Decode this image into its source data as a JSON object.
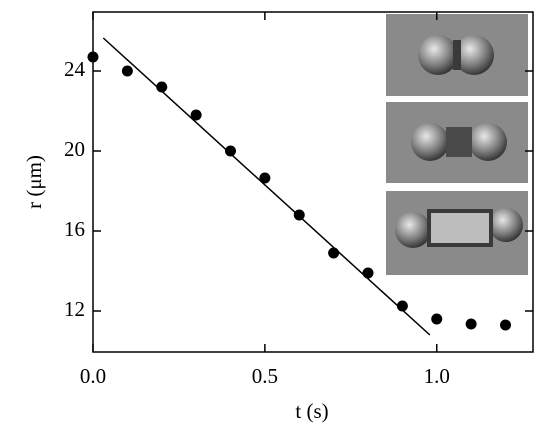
{
  "chart_data": {
    "type": "scatter",
    "x_label": "t (s)",
    "y_label": "r (μm)",
    "xlim": [
      0,
      1.28
    ],
    "ylim": [
      9.95,
      26.95
    ],
    "xticks": [
      {
        "value": 0,
        "label": "0.0"
      },
      0.5,
      {
        "value": 1,
        "label": "1.0"
      }
    ],
    "yticks": [
      12,
      16,
      20,
      24
    ],
    "series": [
      {
        "type": "scatter",
        "color": "#000000",
        "x": [
          0,
          0.1,
          0.2,
          0.3,
          0.4,
          0.5,
          0.6,
          0.7,
          0.8,
          0.9,
          1.0,
          1.1,
          1.2
        ],
        "values": [
          24.7,
          24.0,
          23.2,
          21.8,
          20.0,
          18.65,
          16.8,
          14.9,
          13.9,
          12.25,
          11.6,
          11.35,
          11.3
        ]
      },
      {
        "type": "line",
        "color": "#000000",
        "x": [
          0.03,
          0.98
        ],
        "values": [
          25.65,
          10.8
        ]
      }
    ]
  }
}
